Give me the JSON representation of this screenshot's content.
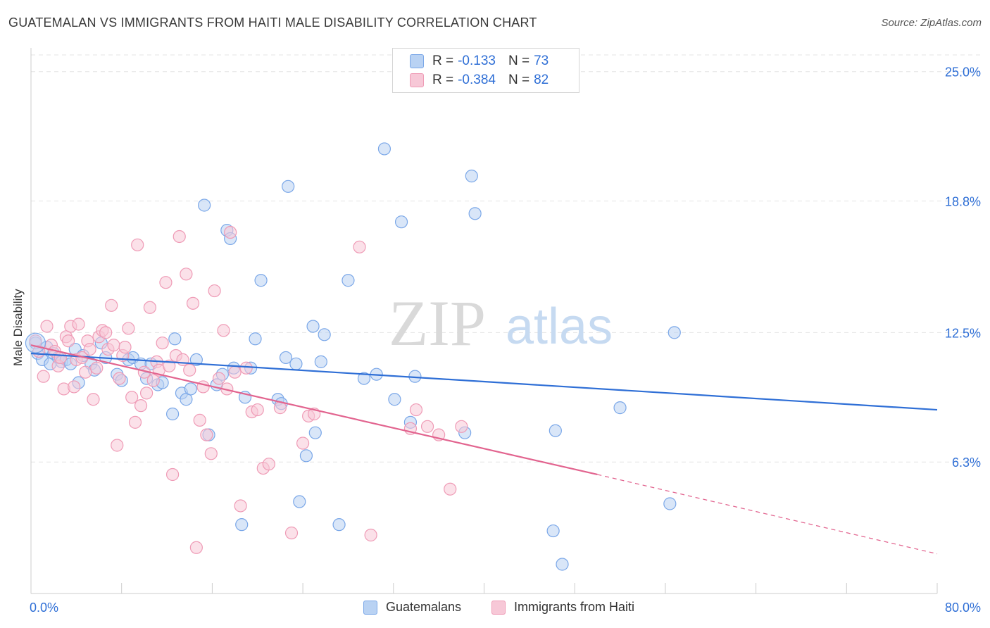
{
  "header": {
    "title": "GUATEMALAN VS IMMIGRANTS FROM HAITI MALE DISABILITY CORRELATION CHART",
    "source": "Source: ZipAtlas.com"
  },
  "watermark": {
    "zip": "ZIP",
    "atlas": "atlas"
  },
  "legend": {
    "rows": [
      {
        "r_label": "R =",
        "r_value": "-0.133",
        "n_label": "N =",
        "n_value": "73",
        "color": "#7aa7e8",
        "fill": "#b9d2f3"
      },
      {
        "r_label": "R =",
        "r_value": "-0.384",
        "n_label": "N =",
        "n_value": "82",
        "color": "#ef9bb6",
        "fill": "#f7c8d7"
      }
    ]
  },
  "bottom_legend": {
    "items": [
      {
        "label": "Guatemalans",
        "color": "#7aa7e8",
        "fill": "#b9d2f3"
      },
      {
        "label": "Immigrants from Haiti",
        "color": "#ef9bb6",
        "fill": "#f7c8d7"
      }
    ]
  },
  "chart_data": {
    "type": "scatter",
    "title": "GUATEMALAN VS IMMIGRANTS FROM HAITI MALE DISABILITY CORRELATION CHART",
    "xlabel": "",
    "ylabel": "Male Disability",
    "xlim": [
      0,
      80
    ],
    "ylim": [
      0,
      25.8
    ],
    "x_tick_labels": [
      "0.0%",
      "80.0%"
    ],
    "y_ticks": [
      6.3,
      12.5,
      18.8,
      25.0
    ],
    "y_tick_labels": [
      "6.3%",
      "12.5%",
      "18.8%",
      "25.0%"
    ],
    "series": [
      {
        "name": "Guatemalans",
        "color": "#2f6fd6",
        "marker_stroke": "#7aa7e8",
        "marker_fill": "#b9d2f3",
        "R": -0.133,
        "N": 73,
        "trend": {
          "x": [
            0,
            80
          ],
          "y": [
            11.5,
            8.8
          ]
        },
        "points": [
          [
            0.6,
            11.5
          ],
          [
            1.0,
            11.2
          ],
          [
            1.4,
            11.8
          ],
          [
            1.7,
            11.0
          ],
          [
            2.0,
            11.5
          ],
          [
            2.4,
            11.3
          ],
          [
            2.7,
            11.1
          ],
          [
            3.1,
            11.2
          ],
          [
            3.5,
            11.0
          ],
          [
            3.9,
            11.7
          ],
          [
            4.2,
            10.1
          ],
          [
            4.6,
            11.4
          ],
          [
            5.3,
            11.0
          ],
          [
            5.6,
            10.7
          ],
          [
            6.2,
            12.0
          ],
          [
            6.6,
            11.3
          ],
          [
            7.6,
            10.5
          ],
          [
            8.0,
            10.2
          ],
          [
            8.6,
            11.2
          ],
          [
            9.0,
            11.3
          ],
          [
            9.7,
            11.0
          ],
          [
            10.2,
            10.3
          ],
          [
            10.6,
            11.0
          ],
          [
            11.2,
            10.0
          ],
          [
            11.6,
            10.1
          ],
          [
            12.5,
            8.6
          ],
          [
            12.7,
            12.2
          ],
          [
            13.3,
            9.6
          ],
          [
            13.7,
            9.3
          ],
          [
            14.1,
            9.8
          ],
          [
            14.6,
            11.2
          ],
          [
            15.3,
            18.6
          ],
          [
            15.7,
            7.6
          ],
          [
            16.4,
            10.0
          ],
          [
            16.9,
            10.5
          ],
          [
            17.3,
            17.4
          ],
          [
            17.6,
            17.0
          ],
          [
            17.9,
            10.8
          ],
          [
            18.6,
            3.3
          ],
          [
            18.9,
            9.4
          ],
          [
            19.4,
            10.8
          ],
          [
            19.8,
            12.2
          ],
          [
            20.3,
            15.0
          ],
          [
            21.8,
            9.3
          ],
          [
            22.1,
            9.1
          ],
          [
            22.5,
            11.3
          ],
          [
            22.7,
            19.5
          ],
          [
            23.4,
            11.0
          ],
          [
            23.7,
            4.4
          ],
          [
            24.3,
            6.6
          ],
          [
            24.9,
            12.8
          ],
          [
            25.1,
            7.7
          ],
          [
            25.6,
            11.1
          ],
          [
            25.9,
            12.4
          ],
          [
            27.2,
            3.3
          ],
          [
            28.0,
            15.0
          ],
          [
            29.4,
            10.3
          ],
          [
            30.5,
            10.5
          ],
          [
            31.2,
            21.3
          ],
          [
            32.1,
            9.3
          ],
          [
            32.7,
            17.8
          ],
          [
            33.5,
            8.2
          ],
          [
            33.9,
            10.4
          ],
          [
            38.3,
            7.7
          ],
          [
            38.9,
            20.0
          ],
          [
            39.2,
            18.2
          ],
          [
            46.1,
            3.0
          ],
          [
            46.3,
            7.8
          ],
          [
            46.9,
            1.4
          ],
          [
            52.0,
            8.9
          ],
          [
            56.4,
            4.3
          ],
          [
            56.8,
            12.5
          ],
          [
            0.4,
            12.0
          ]
        ]
      },
      {
        "name": "Immigrants from Haiti",
        "color": "#e2648f",
        "marker_stroke": "#ef9bb6",
        "marker_fill": "#f7c8d7",
        "R": -0.384,
        "N": 82,
        "trend": {
          "x": [
            0,
            50
          ],
          "y": [
            11.9,
            5.7
          ]
        },
        "trend_extension": {
          "x": [
            50,
            80
          ],
          "y": [
            5.7,
            1.9
          ]
        },
        "points": [
          [
            0.4,
            12.1
          ],
          [
            0.7,
            11.6
          ],
          [
            1.1,
            10.4
          ],
          [
            1.4,
            12.8
          ],
          [
            1.8,
            11.9
          ],
          [
            2.1,
            11.6
          ],
          [
            2.4,
            10.9
          ],
          [
            2.6,
            11.3
          ],
          [
            2.9,
            9.8
          ],
          [
            3.1,
            12.3
          ],
          [
            3.3,
            12.1
          ],
          [
            3.5,
            12.8
          ],
          [
            3.8,
            9.9
          ],
          [
            4.0,
            11.2
          ],
          [
            4.2,
            12.9
          ],
          [
            4.5,
            11.3
          ],
          [
            4.8,
            10.6
          ],
          [
            5.0,
            12.1
          ],
          [
            5.2,
            11.7
          ],
          [
            5.5,
            9.3
          ],
          [
            5.8,
            10.8
          ],
          [
            6.0,
            12.3
          ],
          [
            6.3,
            12.6
          ],
          [
            6.6,
            12.5
          ],
          [
            6.8,
            11.7
          ],
          [
            7.1,
            13.8
          ],
          [
            7.3,
            11.9
          ],
          [
            7.6,
            7.1
          ],
          [
            7.8,
            10.3
          ],
          [
            8.1,
            11.4
          ],
          [
            8.3,
            11.8
          ],
          [
            8.6,
            12.7
          ],
          [
            8.9,
            9.4
          ],
          [
            9.2,
            8.2
          ],
          [
            9.4,
            16.7
          ],
          [
            9.7,
            9.0
          ],
          [
            10.0,
            10.6
          ],
          [
            10.2,
            9.6
          ],
          [
            10.5,
            13.7
          ],
          [
            10.8,
            10.2
          ],
          [
            11.1,
            11.1
          ],
          [
            11.3,
            10.7
          ],
          [
            11.6,
            12.0
          ],
          [
            11.9,
            14.9
          ],
          [
            12.2,
            10.9
          ],
          [
            12.5,
            5.7
          ],
          [
            12.8,
            11.4
          ],
          [
            13.1,
            17.1
          ],
          [
            13.4,
            11.2
          ],
          [
            13.7,
            15.3
          ],
          [
            14.0,
            10.7
          ],
          [
            14.3,
            13.9
          ],
          [
            14.6,
            2.2
          ],
          [
            14.9,
            8.3
          ],
          [
            15.2,
            9.9
          ],
          [
            15.5,
            7.6
          ],
          [
            15.9,
            6.7
          ],
          [
            16.2,
            14.5
          ],
          [
            16.6,
            10.3
          ],
          [
            17.0,
            12.6
          ],
          [
            17.3,
            9.8
          ],
          [
            17.6,
            17.3
          ],
          [
            18.0,
            10.6
          ],
          [
            18.5,
            4.2
          ],
          [
            19.0,
            10.8
          ],
          [
            19.5,
            8.7
          ],
          [
            20.0,
            8.8
          ],
          [
            20.5,
            6.0
          ],
          [
            21.0,
            6.2
          ],
          [
            22.0,
            8.9
          ],
          [
            23.0,
            2.9
          ],
          [
            24.0,
            7.2
          ],
          [
            24.5,
            8.5
          ],
          [
            25.0,
            8.6
          ],
          [
            29.0,
            16.6
          ],
          [
            30.0,
            2.8
          ],
          [
            33.5,
            7.9
          ],
          [
            34.0,
            8.8
          ],
          [
            35.0,
            8.0
          ],
          [
            36.0,
            7.6
          ],
          [
            37.0,
            5.0
          ],
          [
            38.0,
            8.0
          ]
        ]
      }
    ]
  }
}
